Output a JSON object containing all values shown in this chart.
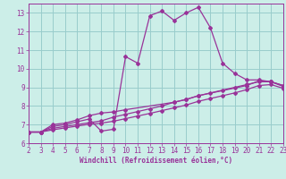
{
  "bg_color": "#cceee8",
  "grid_color": "#99cccc",
  "line_color": "#993399",
  "xlabel": "Windchill (Refroidissement éolien,°C)",
  "xlim": [
    2,
    23
  ],
  "ylim": [
    6,
    13.5
  ],
  "xticks": [
    2,
    3,
    4,
    5,
    6,
    7,
    8,
    9,
    10,
    11,
    12,
    13,
    14,
    15,
    16,
    17,
    18,
    19,
    20,
    21,
    22,
    23
  ],
  "yticks": [
    6,
    7,
    8,
    9,
    10,
    11,
    12,
    13
  ],
  "line1_x": [
    2,
    3,
    4,
    5,
    6,
    7,
    8,
    9,
    10,
    11,
    12,
    13,
    14,
    15,
    16,
    17,
    18,
    19,
    20,
    21,
    22,
    23
  ],
  "line1_y": [
    6.6,
    6.6,
    6.9,
    7.0,
    7.15,
    7.3,
    6.65,
    6.75,
    10.65,
    10.3,
    12.85,
    13.1,
    12.6,
    13.0,
    13.3,
    12.2,
    10.3,
    9.75,
    9.4,
    9.4,
    9.3,
    9.1
  ],
  "line2_x": [
    2,
    3,
    4,
    5,
    6,
    7,
    8,
    9,
    10,
    11,
    12,
    13,
    14,
    15,
    16,
    17,
    18,
    19,
    20,
    21,
    22,
    23
  ],
  "line2_y": [
    6.6,
    6.6,
    6.8,
    6.9,
    7.0,
    7.1,
    7.2,
    7.4,
    7.55,
    7.7,
    7.85,
    8.0,
    8.2,
    8.35,
    8.55,
    8.7,
    8.85,
    9.0,
    9.15,
    9.3,
    9.3,
    9.1
  ],
  "line3_x": [
    2,
    3,
    4,
    5,
    6,
    7,
    8,
    9,
    10,
    11,
    12,
    13,
    14,
    15,
    16,
    17,
    18,
    19,
    20,
    21,
    22,
    23
  ],
  "line3_y": [
    6.6,
    6.6,
    6.72,
    6.82,
    6.92,
    7.02,
    7.08,
    7.18,
    7.32,
    7.46,
    7.6,
    7.75,
    7.9,
    8.05,
    8.25,
    8.4,
    8.55,
    8.7,
    8.88,
    9.1,
    9.15,
    8.95
  ],
  "line4_x": [
    2,
    3,
    4,
    5,
    6,
    7,
    8,
    9,
    10,
    14,
    15,
    16,
    20,
    21,
    22,
    23
  ],
  "line4_y": [
    6.6,
    6.6,
    7.0,
    7.08,
    7.25,
    7.48,
    7.62,
    7.68,
    7.8,
    8.2,
    8.35,
    8.55,
    9.1,
    9.35,
    9.3,
    9.05
  ]
}
